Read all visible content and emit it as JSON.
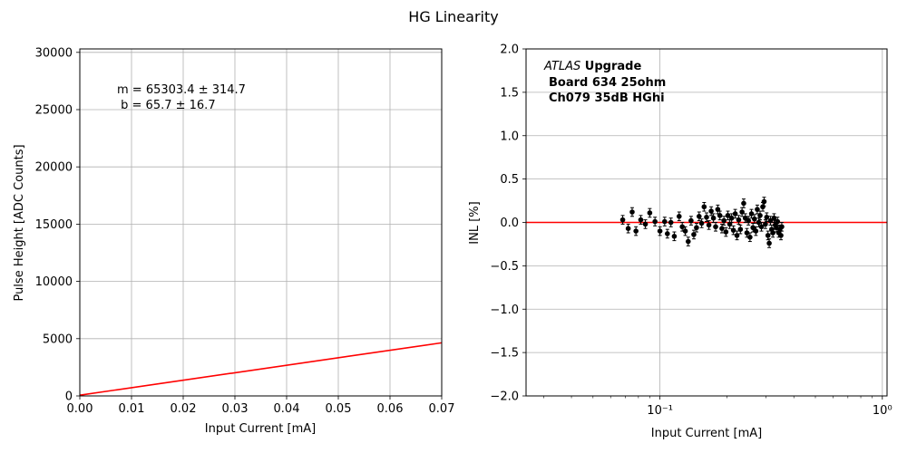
{
  "figure": {
    "title": "HG Linearity"
  },
  "colors": {
    "fit_line": "#ff0000",
    "points": "#000000",
    "grid": "#b0b0b0",
    "axes": "#000000"
  },
  "chart_data": [
    {
      "type": "line",
      "xlabel": "Input Current [mA]",
      "ylabel": "Pulse Height [ADC Counts]",
      "xlim": [
        0,
        0.07
      ],
      "ylim": [
        0,
        30300
      ],
      "xticks": [
        0.0,
        0.01,
        0.02,
        0.03,
        0.04,
        0.05,
        0.06,
        0.07
      ],
      "xtick_labels": [
        "0.00",
        "0.01",
        "0.02",
        "0.03",
        "0.04",
        "0.05",
        "0.06",
        "0.07"
      ],
      "yticks": [
        0,
        5000,
        10000,
        15000,
        20000,
        25000,
        30000
      ],
      "ytick_labels": [
        "0",
        "5000",
        "10000",
        "15000",
        "20000",
        "25000",
        "30000"
      ],
      "grid": true,
      "fit": {
        "slope": 65303.4,
        "intercept": 65.7
      },
      "series": [
        {
          "name": "fit",
          "x": [
            0,
            0.07
          ],
          "y": [
            65.7,
            4636.9
          ]
        }
      ],
      "annotations": [
        "m = 65303.4 ± 314.7",
        " b = 65.7 ± 16.7"
      ]
    },
    {
      "type": "scatter",
      "xscale": "log",
      "xlabel": "Input Current [mA]",
      "ylabel": "INL [%]",
      "xlim": [
        0.025,
        1.05
      ],
      "ylim": [
        -2.0,
        2.0
      ],
      "xticks": [
        0.1,
        1
      ],
      "xtick_labels": [
        "10⁻¹",
        "10⁰"
      ],
      "yticks": [
        -2.0,
        -1.5,
        -1.0,
        -0.5,
        0.0,
        0.5,
        1.0,
        1.5,
        2.0
      ],
      "ytick_labels": [
        "−2.0",
        "−1.5",
        "−1.0",
        "−0.5",
        "0.0",
        "0.5",
        "1.0",
        "1.5",
        "2.0"
      ],
      "grid": true,
      "reference_line": 0.0,
      "annotation": {
        "italic": "ATLAS",
        "bold_lines": [
          " Upgrade",
          "Board 634 25ohm",
          "Ch079 35dB HGhi"
        ]
      },
      "series": [
        {
          "name": "INL",
          "x": [
            0.068,
            0.072,
            0.075,
            0.078,
            0.082,
            0.086,
            0.09,
            0.095,
            0.1,
            0.105,
            0.108,
            0.112,
            0.116,
            0.122,
            0.126,
            0.13,
            0.134,
            0.138,
            0.142,
            0.146,
            0.15,
            0.154,
            0.158,
            0.162,
            0.166,
            0.17,
            0.174,
            0.178,
            0.182,
            0.186,
            0.19,
            0.194,
            0.198,
            0.202,
            0.206,
            0.21,
            0.214,
            0.218,
            0.222,
            0.226,
            0.23,
            0.234,
            0.238,
            0.242,
            0.246,
            0.25,
            0.254,
            0.258,
            0.262,
            0.266,
            0.27,
            0.274,
            0.278,
            0.282,
            0.286,
            0.29,
            0.294,
            0.298,
            0.302,
            0.306,
            0.31,
            0.314,
            0.318,
            0.322,
            0.326,
            0.33,
            0.334,
            0.338,
            0.342,
            0.346,
            0.35,
            0.353
          ],
          "y": [
            0.03,
            -0.07,
            0.12,
            -0.1,
            0.03,
            -0.02,
            0.11,
            0.01,
            -0.1,
            0.01,
            -0.13,
            0.0,
            -0.16,
            0.07,
            -0.05,
            -0.1,
            -0.22,
            0.02,
            -0.14,
            -0.06,
            0.07,
            -0.01,
            0.18,
            0.06,
            -0.03,
            0.13,
            0.05,
            -0.05,
            0.15,
            0.08,
            -0.07,
            0.02,
            -0.11,
            0.08,
            -0.02,
            0.05,
            -0.09,
            0.1,
            -0.15,
            0.03,
            -0.08,
            0.12,
            0.22,
            0.05,
            -0.12,
            0.02,
            -0.17,
            0.1,
            -0.06,
            0.04,
            -0.1,
            0.15,
            0.0,
            0.08,
            -0.05,
            0.18,
            0.24,
            -0.02,
            0.06,
            -0.15,
            -0.24,
            0.02,
            -0.08,
            -0.12,
            0.05,
            -0.03,
            -0.06,
            0.01,
            -0.12,
            -0.08,
            -0.15,
            -0.05
          ],
          "yerr": 0.05
        }
      ]
    }
  ]
}
